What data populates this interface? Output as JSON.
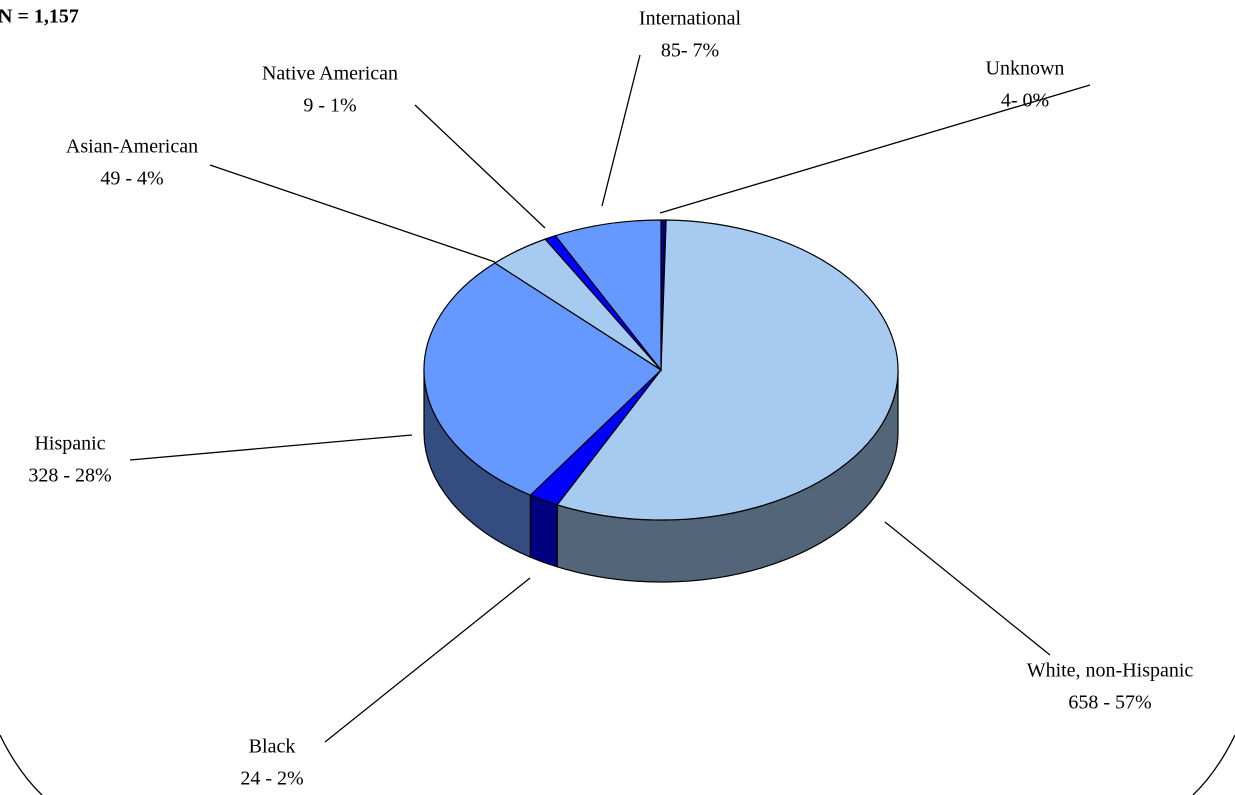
{
  "chart_data": {
    "type": "pie",
    "annotation": "N = 1,157",
    "categories": [
      "Unknown",
      "White, non-Hispanic",
      "Black",
      "Hispanic",
      "Asian-American",
      "Native American",
      "International"
    ],
    "values": [
      4,
      658,
      24,
      328,
      49,
      9,
      85
    ],
    "value_labels": [
      "4- 0%",
      "658 - 57%",
      "24 - 2%",
      "328 - 28%",
      "49 - 4%",
      "9 - 1%",
      "85- 7%"
    ],
    "colors": [
      "#000080",
      "#a6caf0",
      "#0000ff",
      "#6699ff",
      "#a6caf0",
      "#0000ff",
      "#6699ff"
    ],
    "three_d": true
  }
}
